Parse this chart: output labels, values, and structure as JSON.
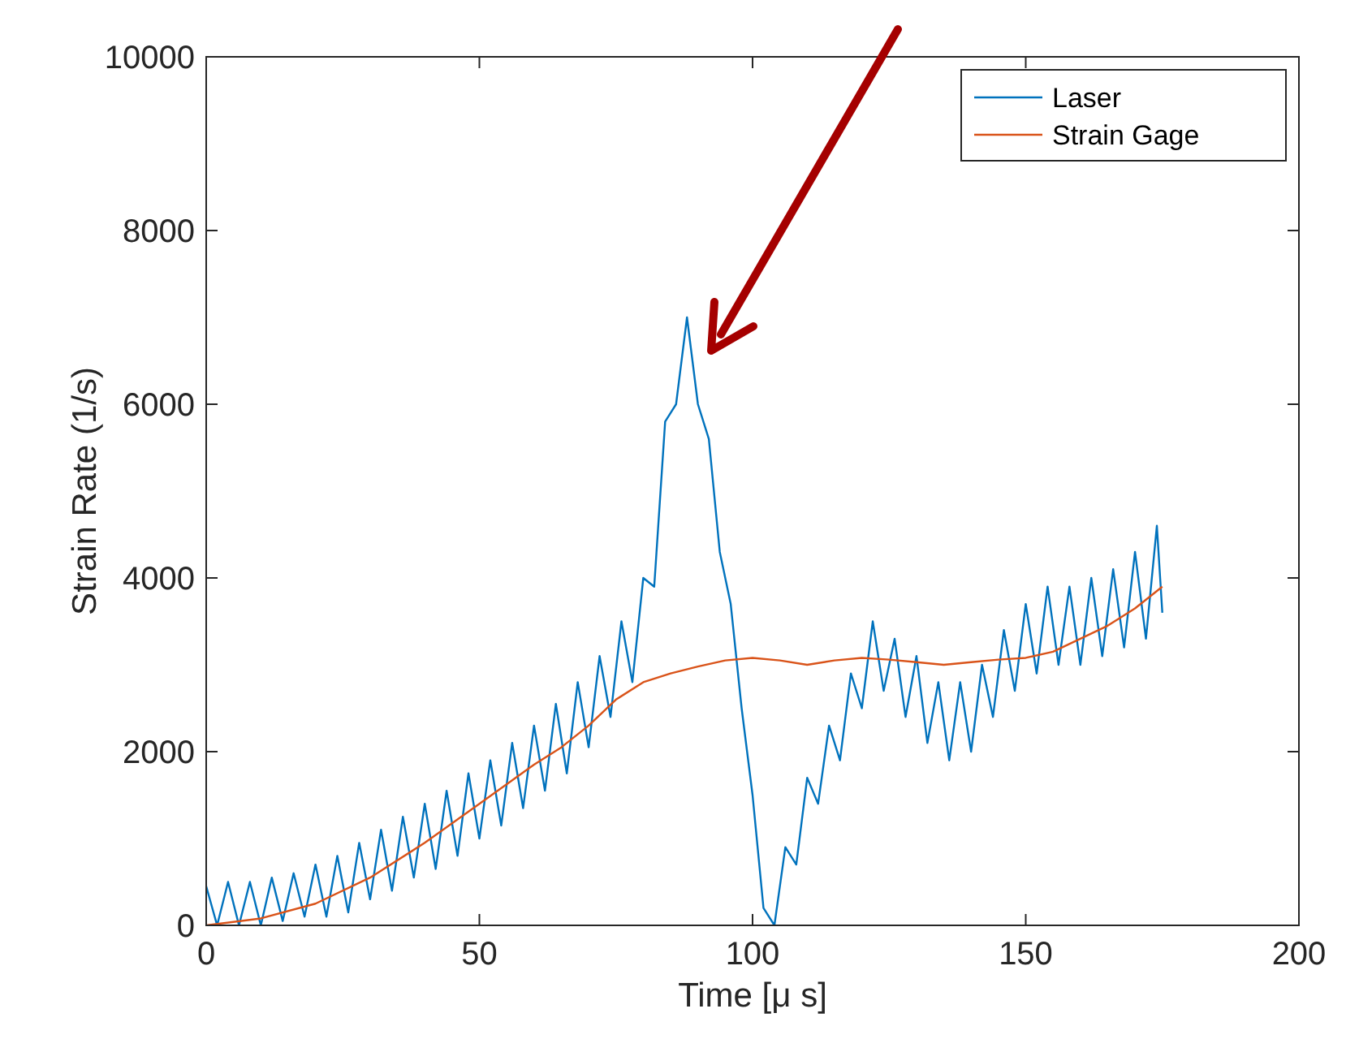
{
  "chart_data": {
    "type": "line",
    "xlabel": "Time [μ s]",
    "ylabel": "Strain Rate (1/s)",
    "xlim": [
      0,
      200
    ],
    "xticks": [
      0,
      50,
      100,
      150,
      200
    ],
    "ylim": [
      0,
      10000
    ],
    "yticks": [
      0,
      2000,
      4000,
      6000,
      8000,
      10000
    ],
    "legend": "top right",
    "grid": false,
    "series": [
      {
        "name": "Laser",
        "color": "#0072bd",
        "x": [
          0,
          2,
          4,
          6,
          8,
          10,
          12,
          14,
          16,
          18,
          20,
          22,
          24,
          26,
          28,
          30,
          32,
          34,
          36,
          38,
          40,
          42,
          44,
          46,
          48,
          50,
          52,
          54,
          56,
          58,
          60,
          62,
          64,
          66,
          68,
          70,
          72,
          74,
          76,
          78,
          80,
          82,
          84,
          86,
          88,
          90,
          92,
          94,
          96,
          98,
          100,
          102,
          104,
          106,
          108,
          110,
          112,
          114,
          116,
          118,
          120,
          122,
          124,
          126,
          128,
          130,
          132,
          134,
          136,
          138,
          140,
          142,
          144,
          146,
          148,
          150,
          152,
          154,
          156,
          158,
          160,
          162,
          164,
          166,
          168,
          170,
          172,
          174,
          175
        ],
        "values": [
          450,
          0,
          500,
          0,
          500,
          0,
          550,
          50,
          600,
          100,
          700,
          100,
          800,
          150,
          950,
          300,
          1100,
          400,
          1250,
          550,
          1400,
          650,
          1550,
          800,
          1750,
          1000,
          1900,
          1150,
          2100,
          1350,
          2300,
          1550,
          2550,
          1750,
          2800,
          2050,
          3100,
          2400,
          3500,
          2800,
          4000,
          3900,
          5800,
          6000,
          7000,
          6000,
          5600,
          4300,
          3700,
          2500,
          1500,
          200,
          0,
          900,
          700,
          1700,
          1400,
          2300,
          1900,
          2900,
          2500,
          3500,
          2700,
          3300,
          2400,
          3100,
          2100,
          2800,
          1900,
          2800,
          2000,
          3000,
          2400,
          3400,
          2700,
          3700,
          2900,
          3900,
          3000,
          3900,
          3000,
          4000,
          3100,
          4100,
          3200,
          4300,
          3300,
          4600,
          3600
        ]
      },
      {
        "name": "Strain Gage",
        "color": "#d95319",
        "x": [
          0,
          10,
          20,
          30,
          40,
          50,
          60,
          65,
          70,
          75,
          80,
          85,
          90,
          95,
          100,
          105,
          110,
          115,
          120,
          125,
          130,
          135,
          140,
          145,
          150,
          155,
          160,
          165,
          170,
          175
        ],
        "values": [
          0,
          80,
          250,
          550,
          950,
          1400,
          1850,
          2050,
          2300,
          2600,
          2800,
          2900,
          2980,
          3050,
          3080,
          3050,
          3000,
          3050,
          3080,
          3060,
          3030,
          3000,
          3030,
          3060,
          3080,
          3150,
          3300,
          3450,
          3650,
          3900
        ]
      }
    ]
  }
}
